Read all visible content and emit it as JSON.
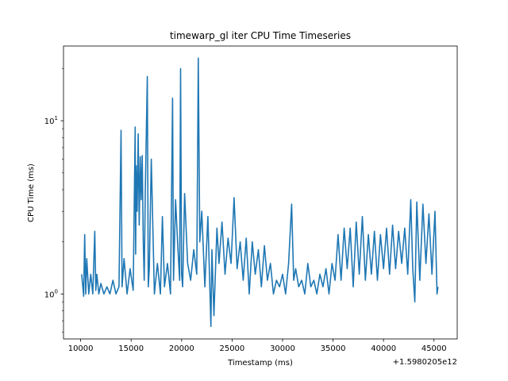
{
  "chart_data": {
    "type": "line",
    "title": "timewarp_gl iter CPU Time Timeseries",
    "xlabel": "Timestamp (ms)",
    "ylabel": "CPU Time (ms)",
    "x_offset_label": "+1.5980205e12",
    "y_scale": "log",
    "xlim": [
      8300,
      47300
    ],
    "ylim": [
      0.55,
      27
    ],
    "grid": false,
    "legend": "none",
    "line_color": "#1f77b4",
    "x_ticks": [
      10000,
      15000,
      20000,
      25000,
      30000,
      35000,
      40000,
      45000
    ],
    "x_tick_labels": [
      "10000",
      "15000",
      "20000",
      "25000",
      "30000",
      "35000",
      "40000",
      "45000"
    ],
    "y_major_ticks": [
      1,
      10
    ],
    "y_tick_labels": [
      "10^0",
      "10^1"
    ],
    "series": [
      {
        "x": [
          10100,
          10300,
          10400,
          10500,
          10600,
          10800,
          11000,
          11200,
          11400,
          11500,
          11600,
          11800,
          12000,
          12300,
          12600,
          12900,
          13200,
          13500,
          13800,
          14000,
          14100,
          14300,
          14600,
          14900,
          15200,
          15400,
          15450,
          15500,
          15600,
          15700,
          15800,
          15900,
          16000,
          16100,
          16200,
          16300,
          16400,
          16600,
          16700,
          16800,
          17000,
          17300,
          17600,
          17900,
          18100,
          18300,
          18600,
          18900,
          19100,
          19200,
          19400,
          19600,
          19800,
          19900,
          20000,
          20100,
          20300,
          20600,
          20900,
          21200,
          21500,
          21650,
          21800,
          22000,
          22300,
          22600,
          22900,
          23000,
          23200,
          23500,
          23700,
          24000,
          24300,
          24600,
          24900,
          25200,
          25500,
          25800,
          26100,
          26400,
          26700,
          27000,
          27300,
          27600,
          27900,
          28200,
          28500,
          28800,
          29100,
          29400,
          29700,
          30000,
          30300,
          30600,
          30900,
          31100,
          31300,
          31600,
          31900,
          32200,
          32500,
          32800,
          33100,
          33400,
          33700,
          34000,
          34300,
          34600,
          34900,
          35200,
          35500,
          35800,
          36100,
          36400,
          36700,
          37000,
          37300,
          37600,
          37900,
          38200,
          38500,
          38800,
          39100,
          39400,
          39700,
          40000,
          40300,
          40600,
          40900,
          41200,
          41500,
          41800,
          42100,
          42400,
          42700,
          42900,
          43100,
          43300,
          43600,
          43900,
          44200,
          44500,
          44800,
          45100,
          45300,
          45400
        ],
        "y": [
          1.3,
          0.97,
          2.2,
          1.0,
          1.6,
          1.0,
          1.3,
          1.0,
          2.3,
          1.05,
          1.3,
          1.0,
          1.15,
          1.0,
          1.1,
          1.0,
          1.2,
          1.0,
          1.1,
          8.8,
          1.1,
          1.6,
          1.0,
          1.4,
          1.05,
          9.2,
          1.7,
          5.5,
          3.0,
          8.4,
          2.5,
          6.2,
          3.5,
          6.3,
          2.0,
          1.2,
          3.8,
          18.0,
          1.1,
          1.4,
          6.0,
          1.0,
          1.5,
          1.0,
          2.8,
          1.1,
          1.5,
          1.0,
          13.5,
          1.2,
          3.5,
          2.0,
          1.2,
          20.0,
          1.3,
          1.1,
          3.8,
          1.5,
          1.2,
          1.8,
          1.3,
          23.0,
          2.0,
          3.0,
          1.1,
          2.8,
          0.65,
          1.8,
          0.75,
          2.4,
          1.5,
          2.6,
          1.3,
          2.1,
          1.5,
          3.6,
          1.4,
          2.0,
          1.2,
          2.1,
          1.0,
          2.0,
          1.3,
          1.8,
          1.1,
          1.9,
          1.2,
          1.5,
          1.0,
          1.2,
          1.1,
          1.3,
          1.0,
          1.5,
          3.3,
          1.2,
          1.4,
          1.1,
          1.2,
          1.0,
          1.5,
          1.1,
          1.2,
          1.0,
          1.3,
          1.1,
          1.4,
          1.0,
          1.5,
          1.2,
          2.2,
          1.2,
          2.4,
          1.4,
          2.4,
          1.1,
          2.6,
          1.3,
          2.8,
          1.2,
          2.2,
          1.3,
          2.3,
          1.2,
          2.2,
          1.4,
          2.4,
          1.3,
          2.5,
          1.4,
          2.3,
          1.5,
          2.4,
          1.3,
          3.5,
          1.4,
          0.9,
          3.4,
          1.2,
          3.3,
          1.5,
          2.9,
          1.3,
          3.0,
          1.0,
          1.1
        ]
      }
    ]
  }
}
